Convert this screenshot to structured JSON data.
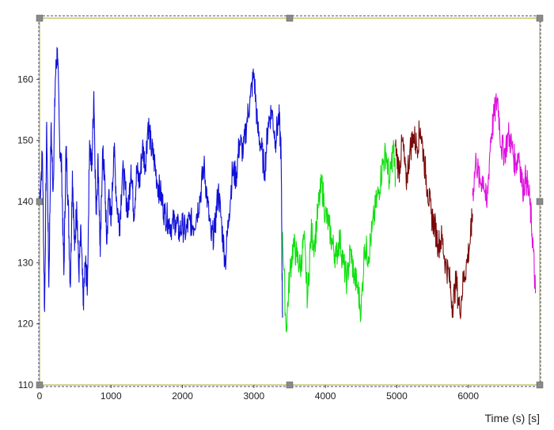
{
  "chart_data": {
    "type": "line",
    "title": "",
    "xlabel": "Time (s) [s]",
    "ylabel": "",
    "xlim": [
      0,
      7000
    ],
    "ylim": [
      110,
      170
    ],
    "x_ticks": [
      0,
      1000,
      2000,
      3000,
      4000,
      5000,
      6000
    ],
    "y_ticks": [
      110,
      120,
      130,
      140,
      150,
      160
    ],
    "grid": false,
    "legend": "none",
    "frame_color": "#c8c864",
    "selection_border_color": "#4a4a8a",
    "series": [
      {
        "color": "#1010d8",
        "x": [
          0,
          40,
          70,
          100,
          130,
          160,
          190,
          220,
          250,
          280,
          310,
          340,
          370,
          400,
          430,
          460,
          490,
          520,
          550,
          580,
          610,
          640,
          670,
          700,
          730,
          760,
          790,
          820,
          850,
          880,
          910,
          940,
          970,
          1000,
          1040,
          1080,
          1120,
          1160,
          1200,
          1240,
          1280,
          1320,
          1360,
          1400,
          1440,
          1480,
          1520,
          1560,
          1600,
          1650,
          1700,
          1750,
          1800,
          1850,
          1900,
          1950,
          2000,
          2050,
          2100,
          2150,
          2200,
          2250,
          2300,
          2350,
          2400,
          2450,
          2500,
          2550,
          2600,
          2650,
          2700,
          2750,
          2800,
          2850,
          2900,
          2950,
          3000,
          3050,
          3100,
          3150,
          3200,
          3250,
          3300,
          3350,
          3380,
          3400
        ],
        "y": [
          140,
          148,
          122,
          153,
          126,
          152,
          142,
          160,
          165,
          150,
          145,
          128,
          149,
          140,
          126,
          145,
          132,
          140,
          128,
          135,
          123,
          130,
          126,
          150,
          145,
          158,
          138,
          147,
          131,
          148,
          144,
          133,
          142,
          136,
          149,
          140,
          136,
          145,
          142,
          138,
          146,
          138,
          145,
          143,
          149,
          146,
          153,
          149,
          147,
          143,
          141,
          138,
          137,
          136,
          137,
          135,
          136,
          135,
          137,
          136,
          138,
          141,
          146,
          140,
          134,
          135,
          142,
          136,
          130,
          138,
          145,
          144,
          150,
          148,
          153,
          157,
          161,
          152,
          149,
          145,
          153,
          155,
          150,
          154,
          148,
          121
        ]
      },
      {
        "color": "#10e010",
        "x": [
          3400,
          3450,
          3500,
          3550,
          3600,
          3650,
          3700,
          3750,
          3800,
          3850,
          3900,
          3950,
          4000,
          4050,
          4100,
          4150,
          4200,
          4250,
          4300,
          4350,
          4400,
          4450,
          4500,
          4550,
          4600,
          4650,
          4700,
          4750,
          4800,
          4850,
          4900,
          4950,
          4980
        ],
        "y": [
          135,
          119,
          128,
          133,
          131,
          129,
          134,
          124,
          135,
          133,
          139,
          143,
          138,
          136,
          133,
          131,
          134,
          130,
          127,
          132,
          128,
          126,
          122,
          133,
          131,
          135,
          139,
          142,
          146,
          148,
          143,
          149,
          144
        ]
      },
      {
        "color": "#7a0a0a",
        "x": [
          4980,
          5030,
          5080,
          5130,
          5180,
          5230,
          5280,
          5330,
          5380,
          5430,
          5480,
          5530,
          5580,
          5630,
          5680,
          5730,
          5780,
          5830,
          5880,
          5930,
          5980,
          6030,
          6060
        ],
        "y": [
          149,
          145,
          150,
          143,
          148,
          151,
          149,
          152,
          147,
          142,
          138,
          136,
          133,
          134,
          130,
          128,
          123,
          127,
          122,
          127,
          130,
          134,
          138
        ]
      },
      {
        "color": "#e010e0",
        "x": [
          6060,
          6110,
          6160,
          6210,
          6260,
          6310,
          6360,
          6410,
          6460,
          6510,
          6560,
          6610,
          6660,
          6710,
          6760,
          6810,
          6860,
          6900,
          6940
        ],
        "y": [
          141,
          147,
          143,
          144,
          139,
          150,
          154,
          157,
          149,
          148,
          151,
          149,
          146,
          148,
          142,
          144,
          140,
          134,
          125
        ]
      }
    ]
  }
}
